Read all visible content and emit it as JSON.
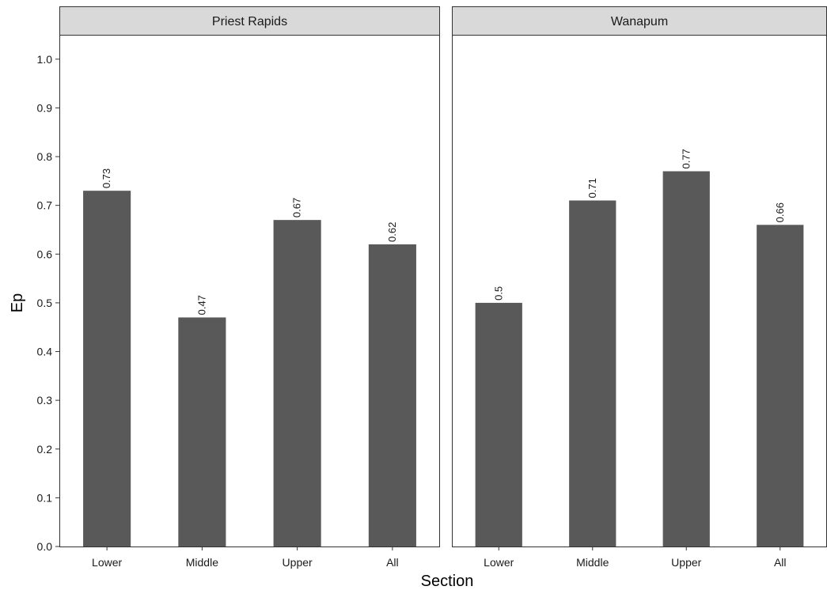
{
  "chart_data": {
    "type": "bar",
    "xlabel": "Section",
    "ylabel": "Ep",
    "ylim": [
      0,
      1.05
    ],
    "yticks": [
      "0.0",
      "0.1",
      "0.2",
      "0.3",
      "0.4",
      "0.5",
      "0.6",
      "0.7",
      "0.8",
      "0.9",
      "1.0"
    ],
    "categories": [
      "Lower",
      "Middle",
      "Upper",
      "All"
    ],
    "grid": false,
    "bar_color": "#595959",
    "panels": [
      {
        "title": "Priest Rapids",
        "values": [
          0.73,
          0.47,
          0.67,
          0.62
        ],
        "labels": [
          "0.73",
          "0.47",
          "0.67",
          "0.62"
        ]
      },
      {
        "title": "Wanapum",
        "values": [
          0.5,
          0.71,
          0.77,
          0.66
        ],
        "labels": [
          "0.5",
          "0.71",
          "0.77",
          "0.66"
        ]
      }
    ]
  }
}
